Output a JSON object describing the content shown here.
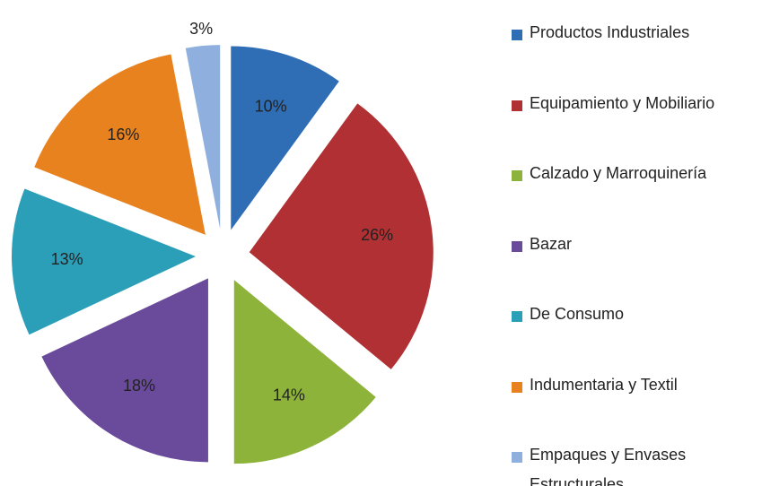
{
  "chart_data": {
    "type": "pie",
    "categories": [
      "Productos Industriales",
      "Equipamiento y Mobiliario",
      "Calzado y Marroquinería",
      "Bazar",
      "De Consumo",
      "Indumentaria y Textil",
      "Empaques y Envases Estructurales"
    ],
    "values": [
      10,
      26,
      14,
      18,
      13,
      16,
      3
    ],
    "value_labels": [
      "10%",
      "26%",
      "14%",
      "18%",
      "13%",
      "16%",
      "3%"
    ],
    "colors": [
      "#2f6db5",
      "#b03033",
      "#8db33a",
      "#6a4a9a",
      "#2c9fb8",
      "#e8821f",
      "#8fb0de"
    ],
    "legend": "right"
  }
}
